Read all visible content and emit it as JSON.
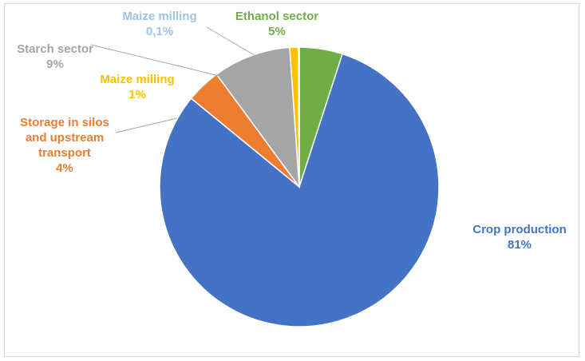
{
  "chart_data": {
    "type": "pie",
    "title": "",
    "slices": [
      {
        "label": "Ethanol sector",
        "value_label": "5%",
        "value": 5,
        "color": "#70ad47"
      },
      {
        "label": "Crop production",
        "value_label": "81%",
        "value": 81,
        "color": "#4472c4"
      },
      {
        "label": "Storage in silos and upstream transport",
        "label_lines": [
          "Storage in silos",
          "and upstream",
          "transport"
        ],
        "value_label": "4%",
        "value": 4,
        "color": "#ed7d31"
      },
      {
        "label": "Starch sector",
        "value_label": "9%",
        "value": 9,
        "color": "#a5a5a5"
      },
      {
        "label": "Maize milling",
        "value_label": "1%",
        "value": 1,
        "color": "#ffc000"
      },
      {
        "label": "Maize milling",
        "value_label": "0,1%",
        "value": 0.1,
        "color": "#9dc3e6"
      }
    ],
    "start_angle_deg": 0,
    "direction": "clockwise",
    "legend": "none"
  }
}
